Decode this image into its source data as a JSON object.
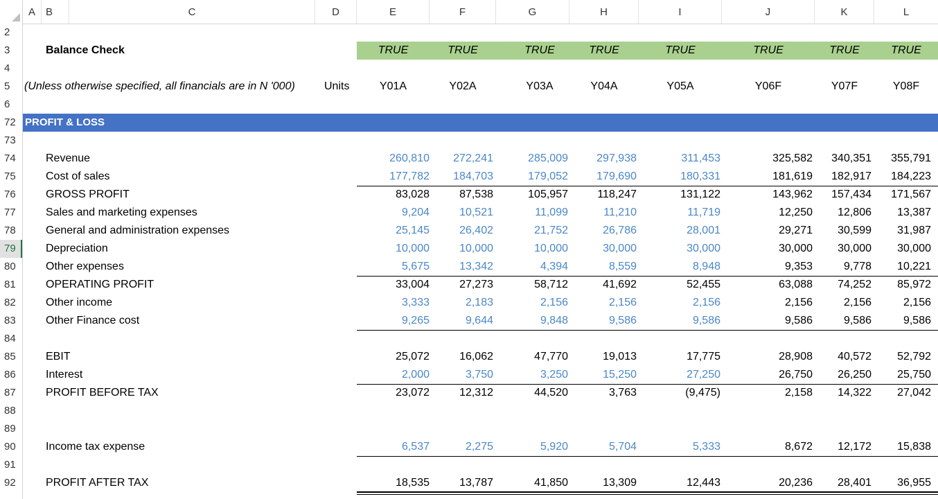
{
  "columns": [
    "A",
    "B",
    "C",
    "D",
    "E",
    "F",
    "G",
    "H",
    "I",
    "J",
    "K",
    "L"
  ],
  "rows": [
    "2",
    "3",
    "4",
    "5",
    "6",
    "72",
    "73",
    "74",
    "75",
    "76",
    "77",
    "78",
    "79",
    "80",
    "81",
    "82",
    "83",
    "84",
    "85",
    "86",
    "87",
    "88",
    "89",
    "90",
    "91",
    "92"
  ],
  "selected_row": "79",
  "balance_check": {
    "label": "Balance Check",
    "values": [
      "TRUE",
      "TRUE",
      "TRUE",
      "TRUE",
      "TRUE",
      "TRUE",
      "TRUE",
      "TRUE"
    ]
  },
  "units_note": "(Unless otherwise specified, all financials are in N '000)",
  "units_label": "Units",
  "years": [
    "Y01A",
    "Y02A",
    "Y03A",
    "Y04A",
    "Y05A",
    "Y06F",
    "Y07F",
    "Y08F"
  ],
  "section_title": "PROFIT & LOSS",
  "pl_rows": {
    "revenue": {
      "label": "Revenue",
      "values": [
        "260,810",
        "272,241",
        "285,009",
        "297,938",
        "311,453",
        "325,582",
        "340,351",
        "355,791"
      ]
    },
    "cos": {
      "label": "Cost of sales",
      "values": [
        "177,782",
        "184,703",
        "179,052",
        "179,690",
        "180,331",
        "181,619",
        "182,917",
        "184,223"
      ]
    },
    "gp": {
      "label": "GROSS PROFIT",
      "values": [
        "83,028",
        "87,538",
        "105,957",
        "118,247",
        "131,122",
        "143,962",
        "157,434",
        "171,567"
      ]
    },
    "sm": {
      "label": "Sales and marketing expenses",
      "values": [
        "9,204",
        "10,521",
        "11,099",
        "11,210",
        "11,719",
        "12,250",
        "12,806",
        "13,387"
      ]
    },
    "ga": {
      "label": "General and administration expenses",
      "values": [
        "25,145",
        "26,402",
        "21,752",
        "26,786",
        "28,001",
        "29,271",
        "30,599",
        "31,987"
      ]
    },
    "dep": {
      "label": "Depreciation",
      "values": [
        "10,000",
        "10,000",
        "10,000",
        "30,000",
        "30,000",
        "30,000",
        "30,000",
        "30,000"
      ]
    },
    "oe": {
      "label": "Other expenses",
      "values": [
        "5,675",
        "13,342",
        "4,394",
        "8,559",
        "8,948",
        "9,353",
        "9,778",
        "10,221"
      ]
    },
    "op": {
      "label": "OPERATING PROFIT",
      "values": [
        "33,004",
        "27,273",
        "58,712",
        "41,692",
        "52,455",
        "63,088",
        "74,252",
        "85,972"
      ]
    },
    "oi": {
      "label": "Other income",
      "values": [
        "3,333",
        "2,183",
        "2,156",
        "2,156",
        "2,156",
        "2,156",
        "2,156",
        "2,156"
      ]
    },
    "ofc": {
      "label": "Other Finance cost",
      "values": [
        "9,265",
        "9,644",
        "9,848",
        "9,586",
        "9,586",
        "9,586",
        "9,586",
        "9,586"
      ]
    },
    "ebit": {
      "label": "EBIT",
      "values": [
        "25,072",
        "16,062",
        "47,770",
        "19,013",
        "17,775",
        "28,908",
        "40,572",
        "52,792"
      ]
    },
    "int": {
      "label": "Interest",
      "values": [
        "2,000",
        "3,750",
        "3,250",
        "15,250",
        "27,250",
        "26,750",
        "26,250",
        "25,750"
      ]
    },
    "pbt": {
      "label": "PROFIT BEFORE TAX",
      "values": [
        "23,072",
        "12,312",
        "44,520",
        "3,763",
        "(9,475)",
        "2,158",
        "14,322",
        "27,042"
      ]
    },
    "tax": {
      "label": "Income tax expense",
      "values": [
        "6,537",
        "2,275",
        "5,920",
        "5,704",
        "5,333",
        "8,672",
        "12,172",
        "15,838"
      ]
    },
    "pat": {
      "label": "PROFIT AFTER TAX",
      "values": [
        "18,535",
        "13,787",
        "41,850",
        "13,309",
        "12,443",
        "20,236",
        "28,401",
        "36,955"
      ]
    }
  },
  "colors": {
    "header_fill": "#a9d08e",
    "section_fill": "#4472c4",
    "input_blue": "#4a87c8"
  }
}
